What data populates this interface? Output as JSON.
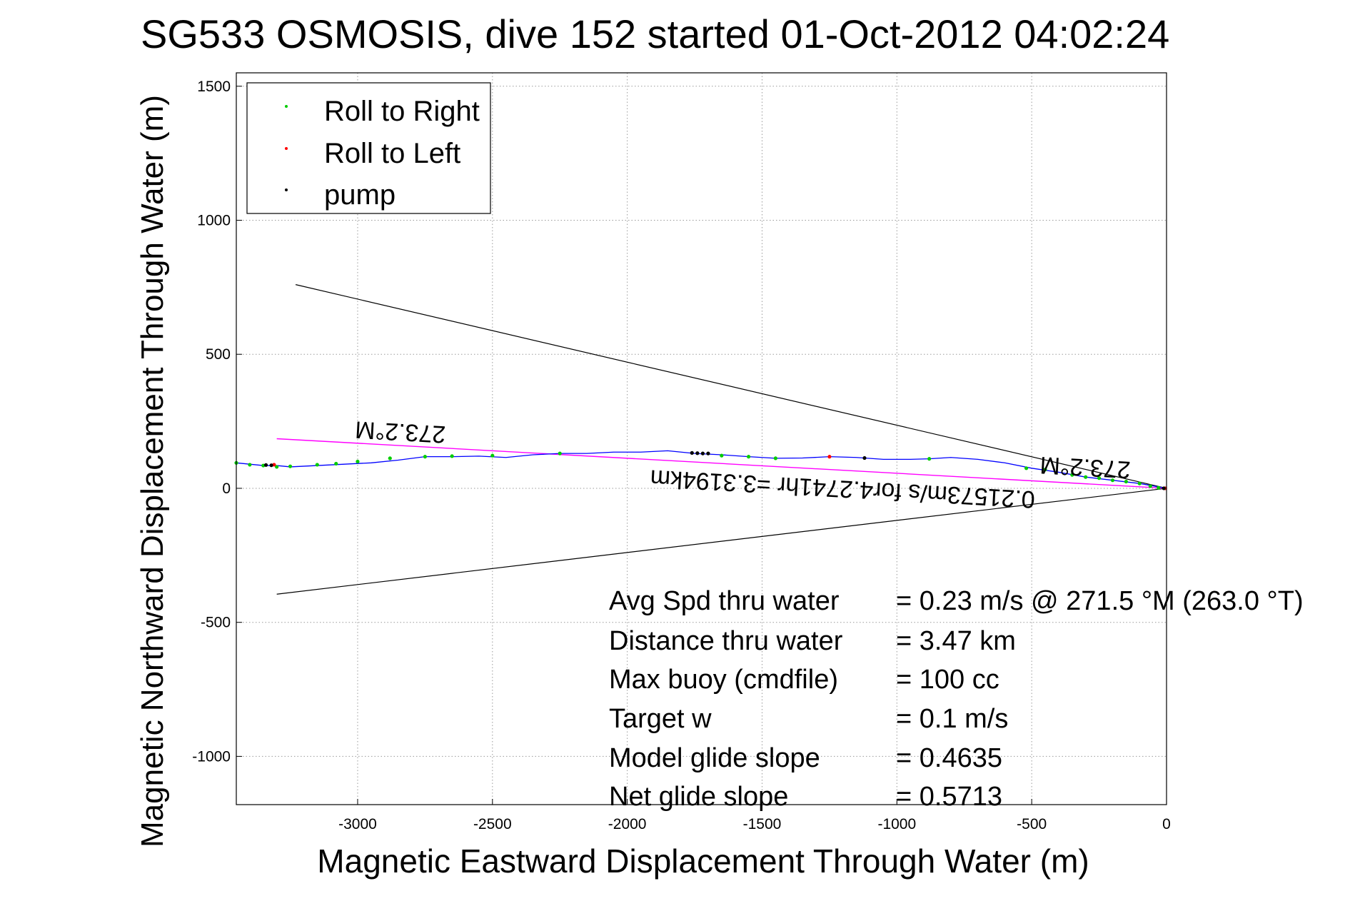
{
  "chart_data": {
    "type": "line",
    "title": "SG533 OSMOSIS, dive 152 started 01-Oct-2012 04:02:24",
    "xlabel": "Magnetic Eastward Displacement Through Water (m)",
    "ylabel": "Magnetic Northward Displacement Through Water (m)",
    "xlim": [
      -3450,
      0
    ],
    "ylim": [
      -1180,
      1550
    ],
    "xticks": [
      -3000,
      -2500,
      -2000,
      -1500,
      -1000,
      -500,
      0
    ],
    "yticks": [
      -1000,
      -500,
      0,
      500,
      1000,
      1500
    ],
    "grid": true,
    "legend_position": "top-left",
    "legend": [
      {
        "label": "Roll to Right",
        "color": "#00cc00"
      },
      {
        "label": "Roll to Left",
        "color": "#ff0000"
      },
      {
        "label": "pump",
        "color": "#000000"
      }
    ],
    "track": {
      "color": "#0000ff",
      "x": [
        0,
        -100,
        -200,
        -300,
        -400,
        -500,
        -600,
        -700,
        -800,
        -880,
        -950,
        -1050,
        -1150,
        -1250,
        -1350,
        -1450,
        -1550,
        -1650,
        -1750,
        -1850,
        -1950,
        -2050,
        -2150,
        -2250,
        -2350,
        -2450,
        -2550,
        -2650,
        -2750,
        -2850,
        -2950,
        -3050,
        -3150,
        -3250,
        -3300,
        -3350,
        -3450
      ],
      "y": [
        0,
        18,
        30,
        42,
        60,
        75,
        95,
        108,
        115,
        110,
        108,
        108,
        115,
        118,
        113,
        112,
        118,
        125,
        130,
        140,
        135,
        135,
        130,
        130,
        125,
        115,
        120,
        118,
        118,
        105,
        95,
        90,
        85,
        80,
        85,
        85,
        95
      ]
    },
    "markers_right": {
      "x": [
        -30,
        -60,
        -100,
        -150,
        -200,
        -250,
        -300,
        -350,
        -450,
        -520,
        -880,
        -1450,
        -1550,
        -1650,
        -2250,
        -2500,
        -2650,
        -2750,
        -2880,
        -3000,
        -3080,
        -3150,
        -3250,
        -3300,
        -3350,
        -3400,
        -3450
      ],
      "y": [
        2,
        8,
        18,
        25,
        30,
        38,
        42,
        50,
        70,
        75,
        110,
        112,
        118,
        122,
        130,
        122,
        120,
        118,
        112,
        100,
        92,
        88,
        82,
        80,
        85,
        88,
        95
      ]
    },
    "markers_left": {
      "x": [
        -5,
        -1250,
        -3310
      ],
      "y": [
        0,
        118,
        88
      ]
    },
    "markers_pump": {
      "x": [
        -10,
        -1120,
        -1700,
        -1720,
        -1740,
        -1760,
        -3320,
        -3340
      ],
      "y": [
        0,
        113,
        130,
        130,
        131,
        132,
        86,
        87
      ]
    },
    "heading_line": {
      "color": "#ff00ff",
      "x": [
        0,
        -3300
      ],
      "y": [
        0,
        185
      ]
    },
    "cone_upper": {
      "color": "#000000",
      "x": [
        0,
        -3230
      ],
      "y": [
        0,
        760
      ]
    },
    "cone_lower": {
      "color": "#000000",
      "x": [
        0,
        -3300
      ],
      "y": [
        0,
        -395
      ]
    },
    "annotations": [
      {
        "text": "273.2°M",
        "x": -2840,
        "y": 240
      },
      {
        "text": "273.2°M",
        "x": -300,
        "y": 108
      },
      {
        "text": "0.21573m/s for4.2741hr =3.3194km",
        "x": -1200,
        "y": 28
      }
    ],
    "stats": [
      {
        "label": "Avg Spd thru water",
        "value": "=  0.23 m/s @ 271.5 °M (263.0 °T)"
      },
      {
        "label": "Distance thru water",
        "value": "=  3.47 km"
      },
      {
        "label": "Max buoy (cmdfile)",
        "value": "= 100 cc"
      },
      {
        "label": "Target w",
        "value": "= 0.1 m/s"
      },
      {
        "label": "Model glide slope",
        "value": "= 0.4635"
      },
      {
        "label": "Net glide slope",
        "value": "= 0.5713"
      }
    ]
  }
}
